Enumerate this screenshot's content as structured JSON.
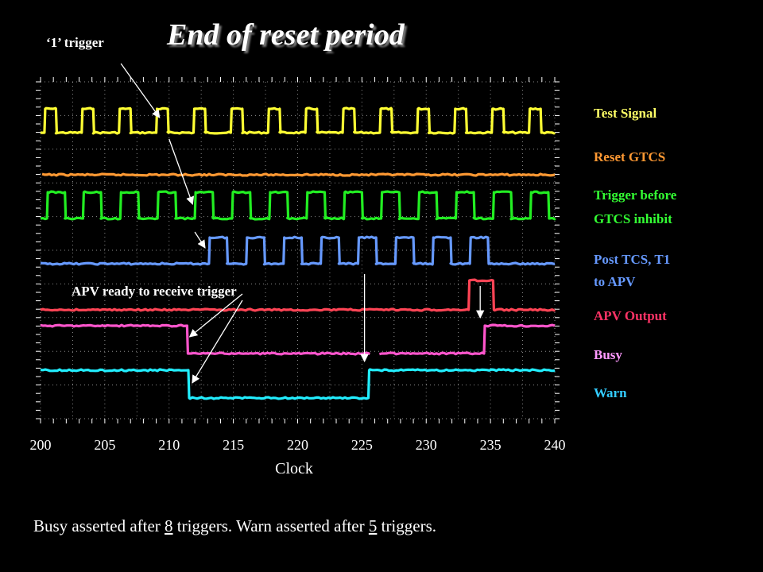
{
  "title": "End of reset period",
  "trigger_annotation": "‘1’ trigger",
  "apv_ready_annotation": "APV ready to receive trigger",
  "caption": {
    "part1": "Busy asserted after ",
    "busy_count": "8",
    "part2": " triggers.  Warn asserted after ",
    "warn_count": "5",
    "part3": " triggers."
  },
  "legend": [
    {
      "text": "Test Signal",
      "color": "#ffff66"
    },
    {
      "text": "Reset GTCS",
      "color": "#ff9933"
    },
    {
      "text": "Trigger before",
      "color": "#33ff33"
    },
    {
      "text": "GTCS inhibit",
      "color": "#33ff33"
    },
    {
      "text": "Post TCS, T1",
      "color": "#6699ff"
    },
    {
      "text": "to APV",
      "color": "#6699ff"
    },
    {
      "text": "APV Output",
      "color": "#ff3366"
    },
    {
      "text": "Busy",
      "color": "#ff99ff"
    },
    {
      "text": "Warn",
      "color": "#33ccff"
    }
  ],
  "chart_data": {
    "type": "line",
    "xlabel": "Clock",
    "xlim": [
      200,
      240
    ],
    "xticks": [
      200,
      205,
      210,
      215,
      220,
      225,
      230,
      235,
      240
    ],
    "grid": true,
    "series": [
      {
        "key": "test",
        "color": "#ffff33",
        "rising": [
          200.3,
          203.2,
          206.1,
          209.0,
          211.9,
          214.8,
          217.7,
          220.6,
          223.5,
          226.4,
          229.3,
          232.2,
          235.1,
          238.0
        ],
        "pulse_width": 0.9,
        "always_high": false
      },
      {
        "key": "reset",
        "color": "#ff9933",
        "rising": [],
        "pulse_width": 0,
        "always_high": false
      },
      {
        "key": "trigger",
        "color": "#22ee22",
        "rising": [
          200.5,
          203.3,
          206.2,
          209.1,
          212.0,
          214.9,
          217.8,
          220.7,
          223.6,
          226.5,
          229.4,
          232.3,
          235.2,
          238.1
        ],
        "pulse_width": 1.4,
        "always_high": false
      },
      {
        "key": "post",
        "color": "#6699ff",
        "rising": [
          213.1,
          216.0,
          218.9,
          221.8,
          224.7,
          227.6,
          230.5,
          233.4
        ],
        "pulse_width": 1.4,
        "always_high": false
      },
      {
        "key": "apv",
        "color": "#ff4455",
        "rising": [
          233.3
        ],
        "pulse_width": 1.9,
        "always_high": false
      },
      {
        "key": "busy",
        "color": "#ff55cc",
        "falling": 211.4,
        "rising": 234.5,
        "gap": [
          225.8,
          226.3
        ]
      },
      {
        "key": "warn",
        "color": "#22eeff",
        "falling": 211.5,
        "rising": 225.5
      }
    ]
  }
}
